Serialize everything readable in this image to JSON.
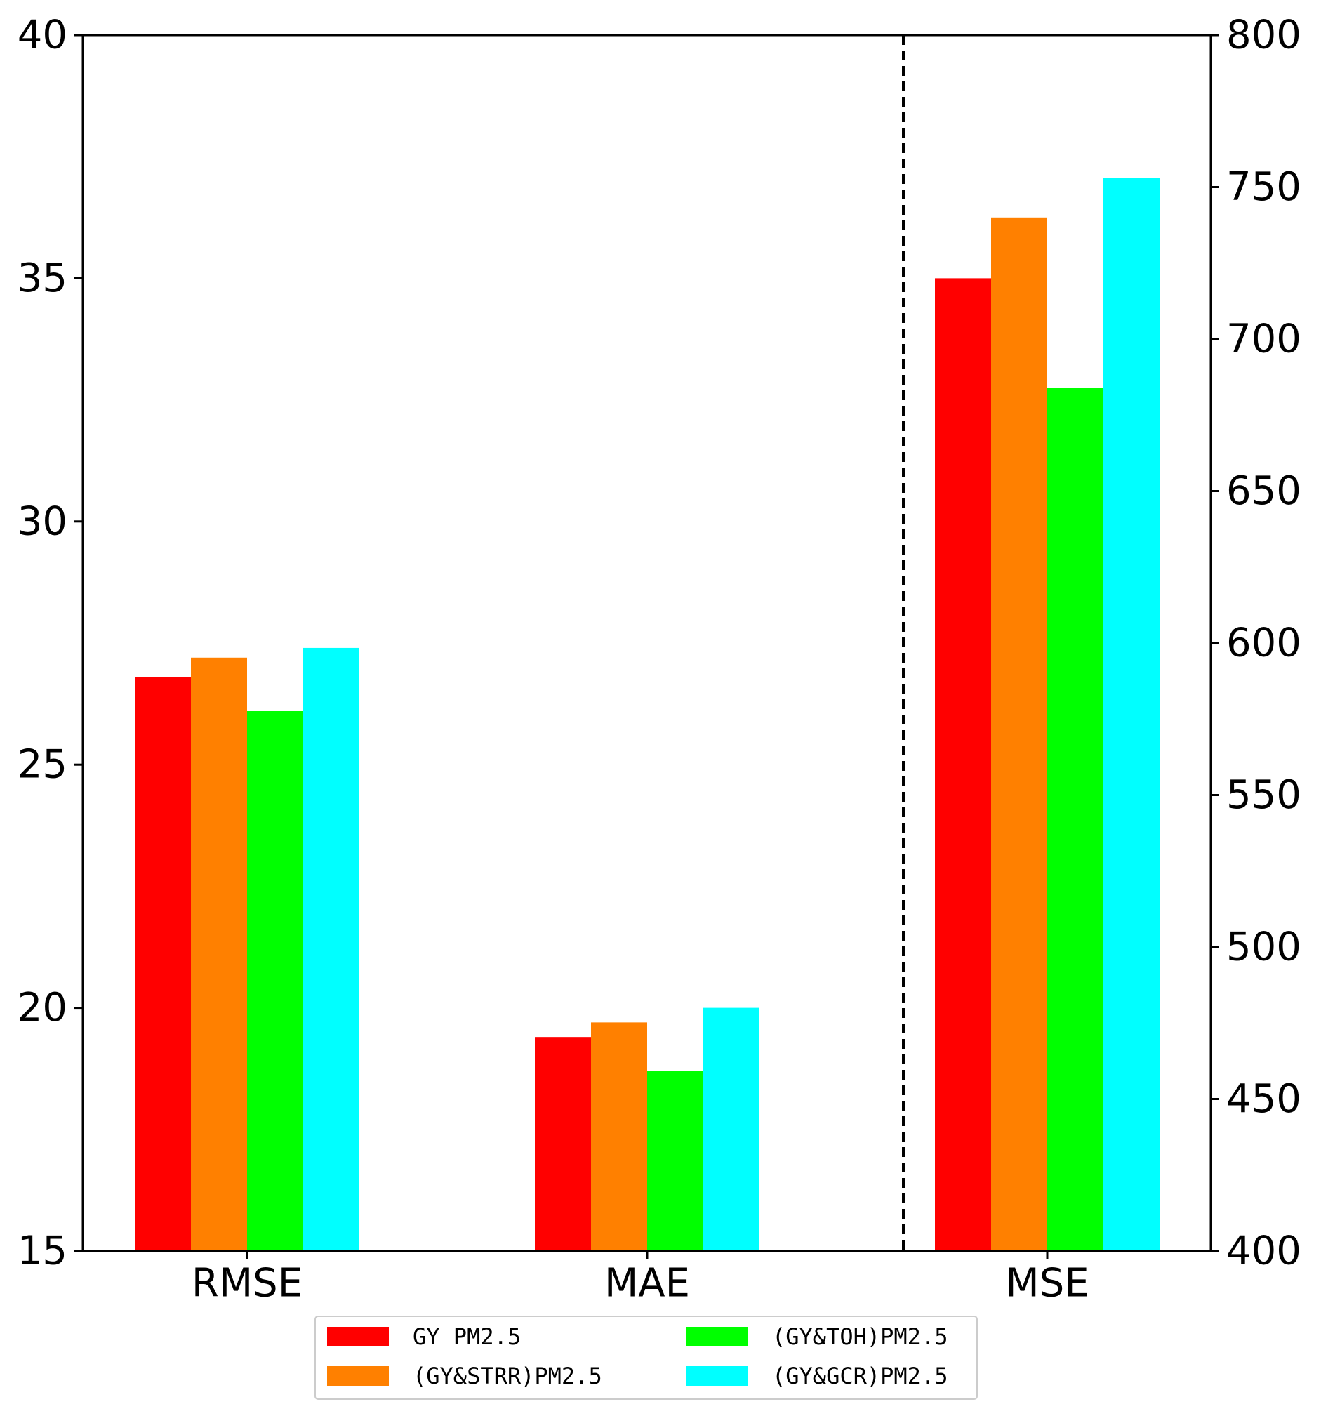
{
  "chart_data": {
    "type": "bar",
    "categories": [
      "RMSE",
      "MAE",
      "MSE"
    ],
    "category_axis": [
      "left",
      "left",
      "right"
    ],
    "series": [
      {
        "name": "GY PM2.5",
        "color": "#ff0000",
        "values": [
          26.8,
          19.4,
          720
        ]
      },
      {
        "name": "(GY&STRR)PM2.5",
        "color": "#ff8000",
        "values": [
          27.2,
          19.7,
          740
        ]
      },
      {
        "name": "(GY&TOH)PM2.5",
        "color": "#00ff00",
        "values": [
          26.1,
          18.7,
          684
        ]
      },
      {
        "name": "(GY&GCR)PM2.5",
        "color": "#00ffff",
        "values": [
          27.4,
          20.0,
          753
        ]
      }
    ],
    "left_axis": {
      "ylim": [
        15,
        40
      ],
      "ticks": [
        "15",
        "20",
        "25",
        "30",
        "35",
        "40"
      ]
    },
    "right_axis": {
      "ylim": [
        400,
        800
      ],
      "ticks": [
        "400",
        "450",
        "500",
        "550",
        "600",
        "650",
        "700",
        "750",
        "800"
      ]
    },
    "separator": "dashed vertical line between MAE and MSE",
    "legend": {
      "placement": "bottom-center",
      "columns": 2,
      "labels": [
        "GY PM2.5",
        "(GY&TOH)PM2.5",
        "(GY&STRR)PM2.5",
        "(GY&GCR)PM2.5"
      ]
    },
    "title": "",
    "xlabel": "",
    "ylabel": ""
  }
}
